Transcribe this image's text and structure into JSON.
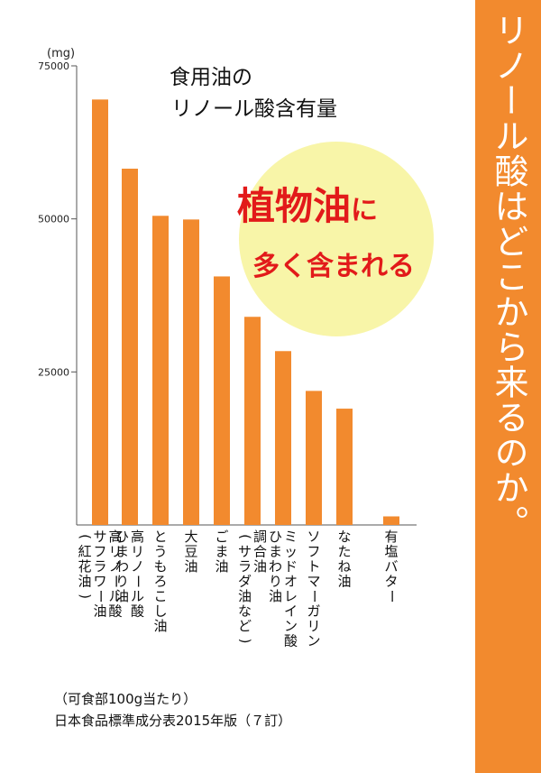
{
  "side_title": "リノール酸はどこから来るのか。",
  "accent_color": "#f28a2e",
  "bubble_color": "#f8f5a8",
  "highlight_color": "#e21a1a",
  "chart_data": {
    "type": "bar",
    "title_lines": [
      "食用油の",
      "リノール酸含有量"
    ],
    "highlight_line1_big": "植物油",
    "highlight_line1_small": "に",
    "highlight_line2": "多く含まれる",
    "unit": "(mg)",
    "ylim": [
      0,
      75000
    ],
    "yticks": [
      25000,
      50000,
      75000
    ],
    "ytick_labels": [
      "25000",
      "50000",
      "75000"
    ],
    "categories": [
      [
        "高リノール酸",
        "サフラワー油",
        "(紅花油)"
      ],
      [
        "高リノール酸",
        "ひまわり油"
      ],
      [
        "とうもろこし油"
      ],
      [
        "大豆油"
      ],
      [
        "ごま油"
      ],
      [
        "調合油",
        "(サラダ油など)"
      ],
      [
        "ミッドオレイン酸",
        "ひまわり油"
      ],
      [
        "ソフトマーガリン"
      ],
      [
        "なたね油"
      ],
      [
        "有塩バター"
      ]
    ],
    "values": [
      69500,
      58200,
      50500,
      49900,
      40600,
      34000,
      28400,
      21900,
      19000,
      1400
    ],
    "grid": false
  },
  "footnote_lines": [
    "（可食部100g当たり）",
    "日本食品標準成分表2015年版（７訂）"
  ]
}
